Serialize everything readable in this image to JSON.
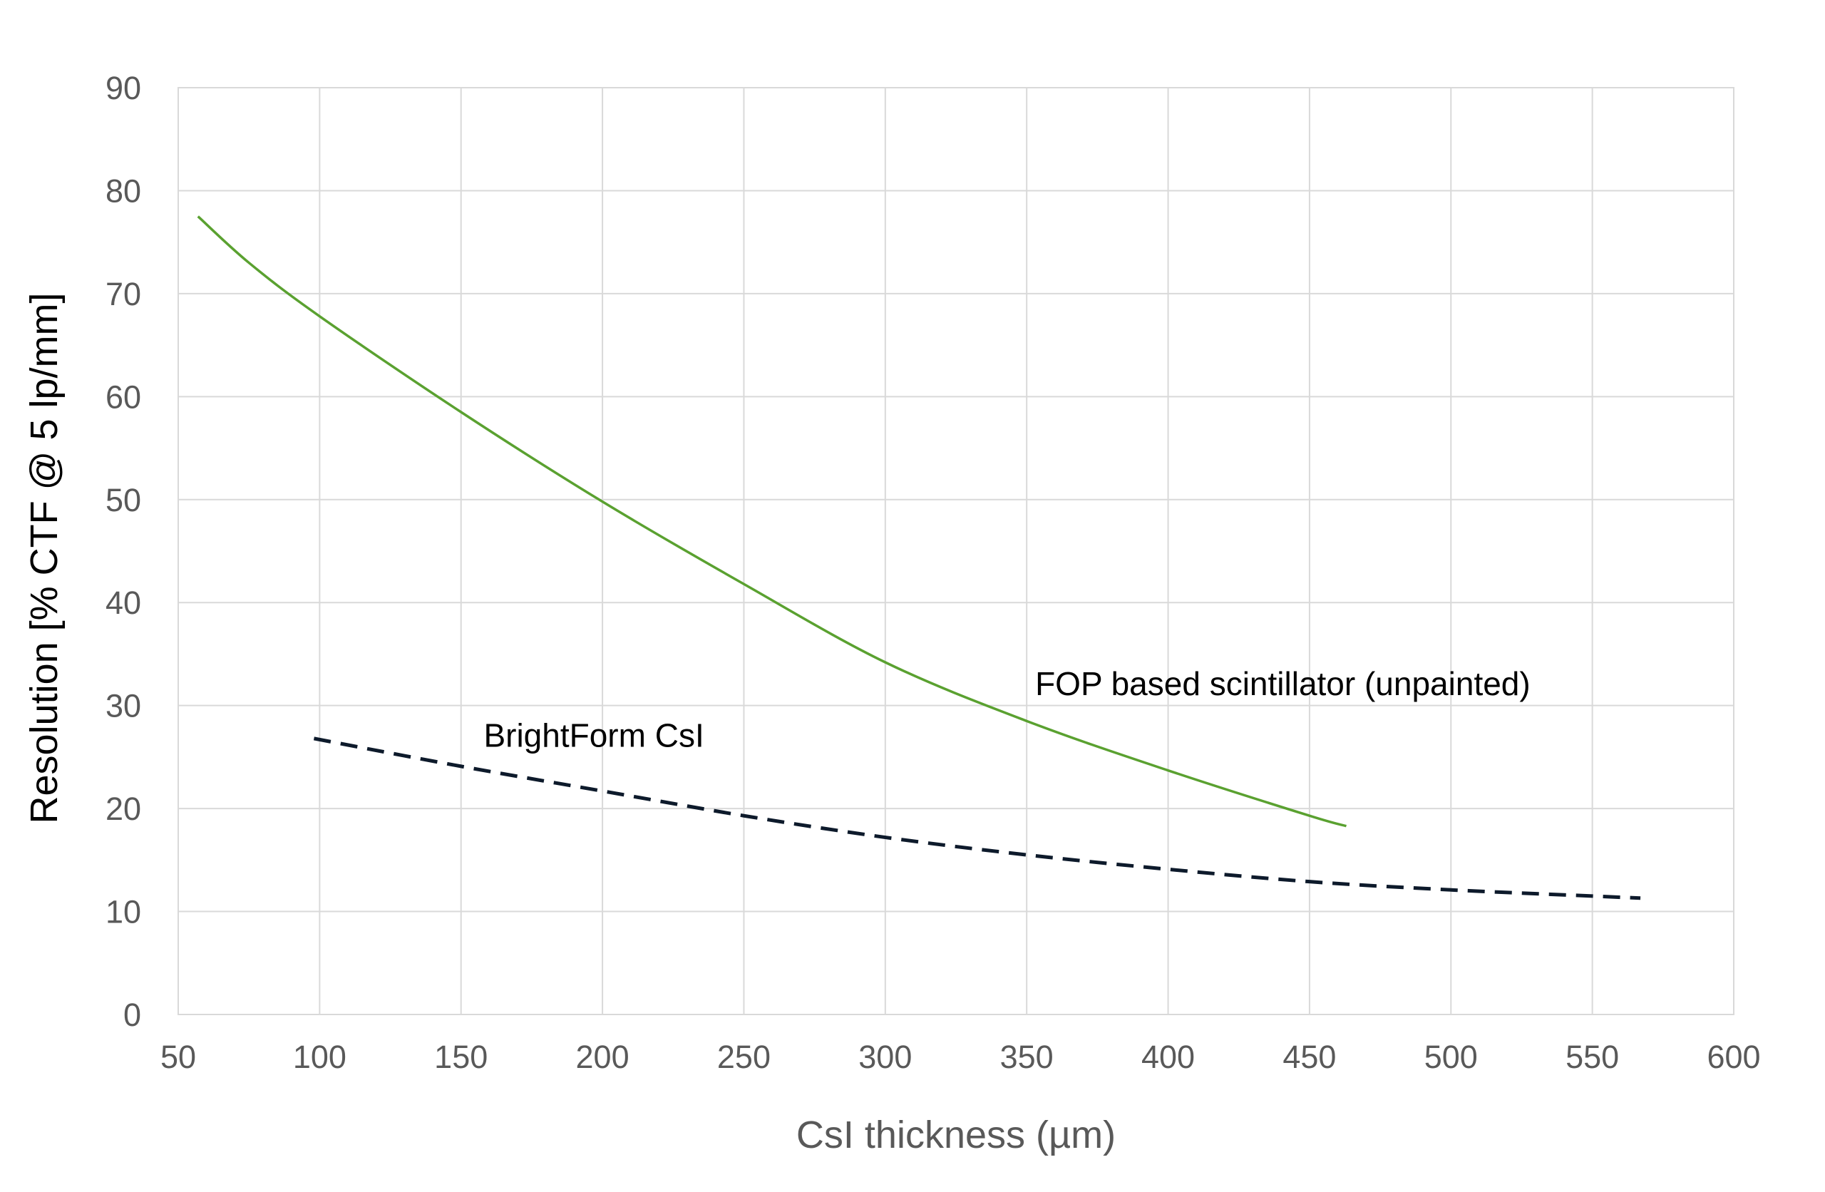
{
  "chart_data": {
    "type": "line",
    "title": "",
    "xlabel": "CsI thickness (µm)",
    "ylabel": "Resolution [% CTF @ 5 lp/mm]",
    "xlim": [
      50,
      600
    ],
    "ylim": [
      0,
      90
    ],
    "xticks": [
      50,
      100,
      150,
      200,
      250,
      300,
      350,
      400,
      450,
      500,
      550,
      600
    ],
    "yticks": [
      0,
      10,
      20,
      30,
      40,
      50,
      60,
      70,
      80,
      90
    ],
    "grid": true,
    "series": [
      {
        "name": "FOP based scintillator (unpainted)",
        "color": "#5aa130",
        "style": "solid",
        "x": [
          57,
          75,
          100,
          150,
          200,
          250,
          300,
          350,
          400,
          450,
          463
        ],
        "y": [
          77.5,
          73,
          67.8,
          58.5,
          49.8,
          41.8,
          34.2,
          28.5,
          23.7,
          19.3,
          18.3
        ]
      },
      {
        "name": "BrightForm CsI",
        "color": "#0d1a2b",
        "style": "dashed",
        "x": [
          98,
          150,
          200,
          250,
          300,
          350,
          400,
          450,
          500,
          550,
          567
        ],
        "y": [
          26.8,
          24.1,
          21.7,
          19.3,
          17.2,
          15.5,
          14.1,
          12.9,
          12.1,
          11.5,
          11.3
        ]
      }
    ],
    "annotations": [
      {
        "text": "FOP based scintillator (unpainted)",
        "x": 353,
        "y": 31
      },
      {
        "text": "BrightForm CsI",
        "x": 158,
        "y": 26
      }
    ]
  }
}
